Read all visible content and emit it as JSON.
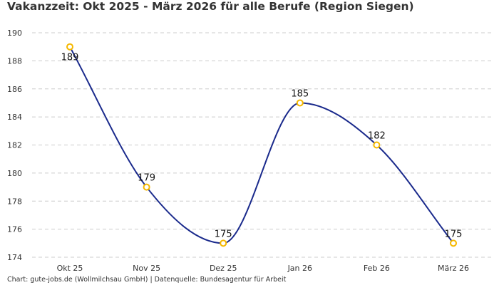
{
  "chart_data": {
    "type": "line",
    "title": "Vakanzzeit: Okt 2025 - März 2026 für alle Berufe (Region Siegen)",
    "categories": [
      "Okt 25",
      "Nov 25",
      "Dez 25",
      "Jan 26",
      "Feb 26",
      "März 26"
    ],
    "values": [
      189,
      179,
      175,
      185,
      182,
      175
    ],
    "xlabel": "",
    "ylabel": "",
    "ylim": [
      174,
      190
    ],
    "yticks": [
      174,
      176,
      178,
      180,
      182,
      184,
      186,
      188,
      190
    ],
    "grid": true,
    "smooth": true,
    "colors": {
      "line": "#1a2a8c",
      "marker": "#f5b800",
      "grid": "#cccccc"
    },
    "footer": "Chart: gute-jobs.de (Wollmilchsau GmbH) | Datenquelle: Bundesagentur für Arbeit"
  }
}
